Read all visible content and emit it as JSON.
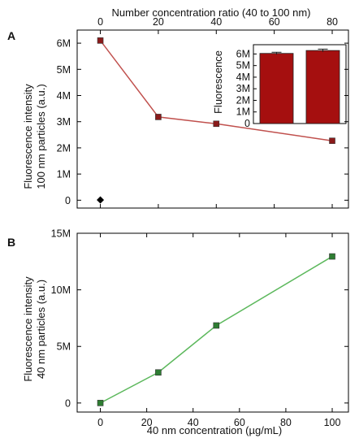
{
  "chart_data": [
    {
      "panel": "A",
      "type": "line",
      "xlabel_top": "Number concentration ratio (40 to 100 nm)",
      "x_top_ticks": [
        "0",
        "20",
        "40",
        "60",
        "80"
      ],
      "x_top_lim": [
        0,
        80
      ],
      "ylabel": [
        "Fluorescence intensity",
        "100 nm particles (a.u.)"
      ],
      "y_ticks": [
        "0",
        "1M",
        "2M",
        "3M",
        "4M",
        "5M",
        "6M"
      ],
      "ylim": [
        -300000,
        6500000
      ],
      "x_lim": [
        -10,
        107
      ],
      "colors": {
        "line": "#c0504d",
        "marker": "#8b1a1a",
        "control": "#000000"
      },
      "series": [
        {
          "x": [
            0,
            25,
            50,
            100
          ],
          "y": [
            6100000,
            3180000,
            2920000,
            2270000
          ],
          "err": [
            80000,
            100000,
            40000,
            40000
          ]
        }
      ],
      "control_point": {
        "x": 0,
        "y": 10000
      },
      "inset": {
        "type": "bar",
        "ylabel": "Fluorescence",
        "y_ticks": [
          "0",
          "1M",
          "2M",
          "3M",
          "4M",
          "5M",
          "6M"
        ],
        "ylim": [
          0,
          6800000
        ],
        "values": [
          6050000,
          6300000
        ],
        "err": [
          100000,
          120000
        ],
        "bar_color": "#a50f0f"
      }
    },
    {
      "panel": "B",
      "type": "line",
      "xlabel": "40 nm concentration (µg/mL)",
      "x_ticks": [
        "0",
        "20",
        "40",
        "60",
        "80",
        "100"
      ],
      "x_lim": [
        -10,
        107
      ],
      "ylabel": [
        "Fluorescence intensity",
        "40 nm particles (a.u.)"
      ],
      "y_ticks": [
        "0",
        "5M",
        "10M",
        "15M"
      ],
      "ylim": [
        -800000,
        15000000
      ],
      "colors": {
        "line": "#5cb85c",
        "marker": "#2e7d32"
      },
      "series": [
        {
          "x": [
            0,
            25,
            50,
            100
          ],
          "y": [
            0,
            2700000,
            6850000,
            12950000
          ]
        }
      ]
    }
  ]
}
